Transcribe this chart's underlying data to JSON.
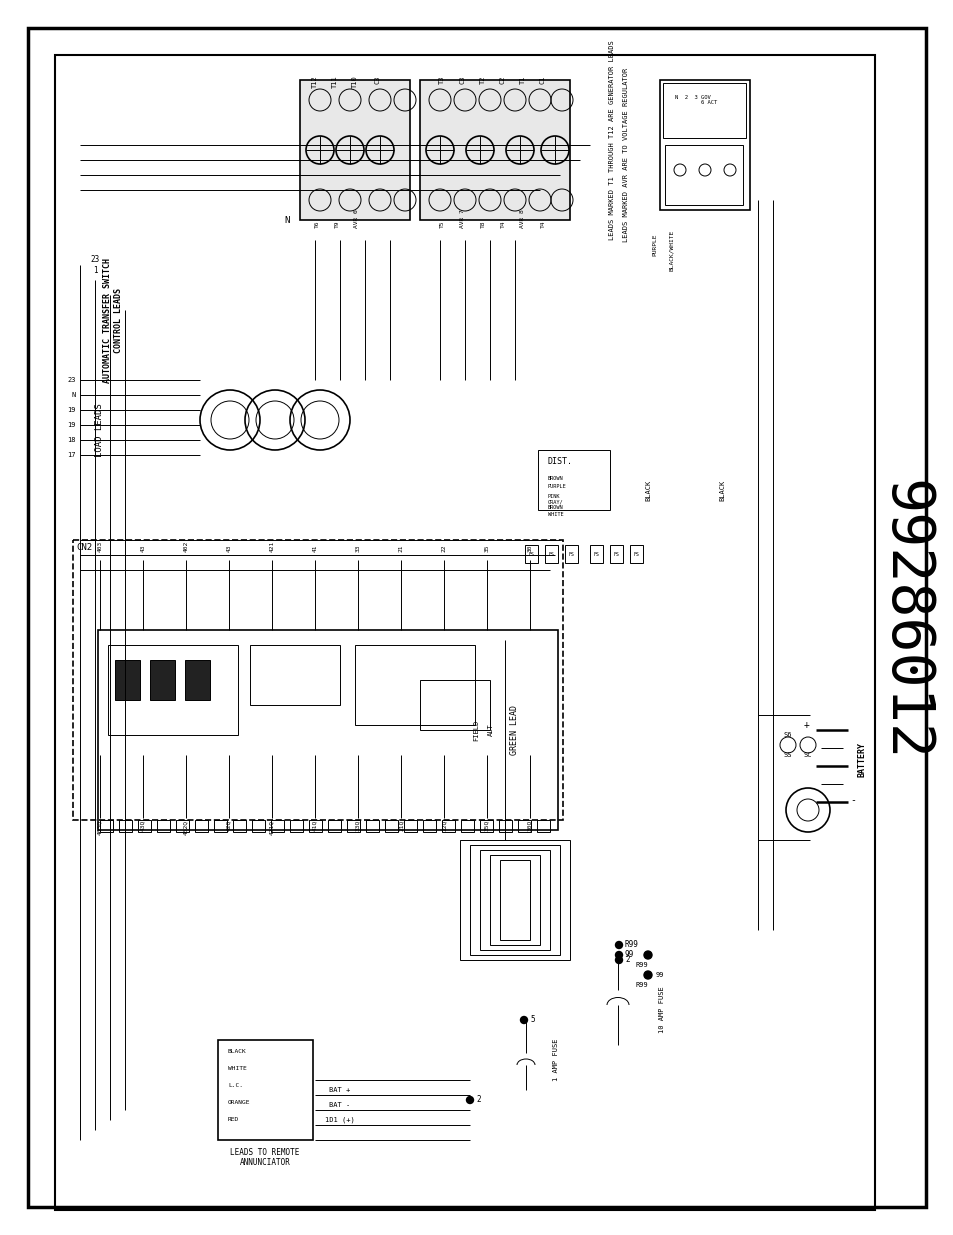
{
  "background_color": "#ffffff",
  "line_color": "#000000",
  "part_number": "99286012",
  "labels": {
    "automatic_transfer_switch": "AUTOMATIC TRANSFER SWITCH\nCONTROL LEADS",
    "load_leads": "LOAD LEADS",
    "leads_note1": "LEADS MARKED T1 THROUGH T12 ARE GENERATOR LEADS",
    "leads_note2": "LEADS MARKED AVR ARE TO VOLTAGE REGULATOR",
    "green_lead": "GREEN LEAD",
    "battery": "BATTERY",
    "dist": "DIST.",
    "field": "FIELD",
    "alt": "ALT",
    "fuse_1amp": "1 AMP FUSE",
    "fuse_10amp": "10 AMP FUSE",
    "leads_remote": "LEADS TO REMOTE\nANNUNCIATOR",
    "cn2": "CN2"
  }
}
